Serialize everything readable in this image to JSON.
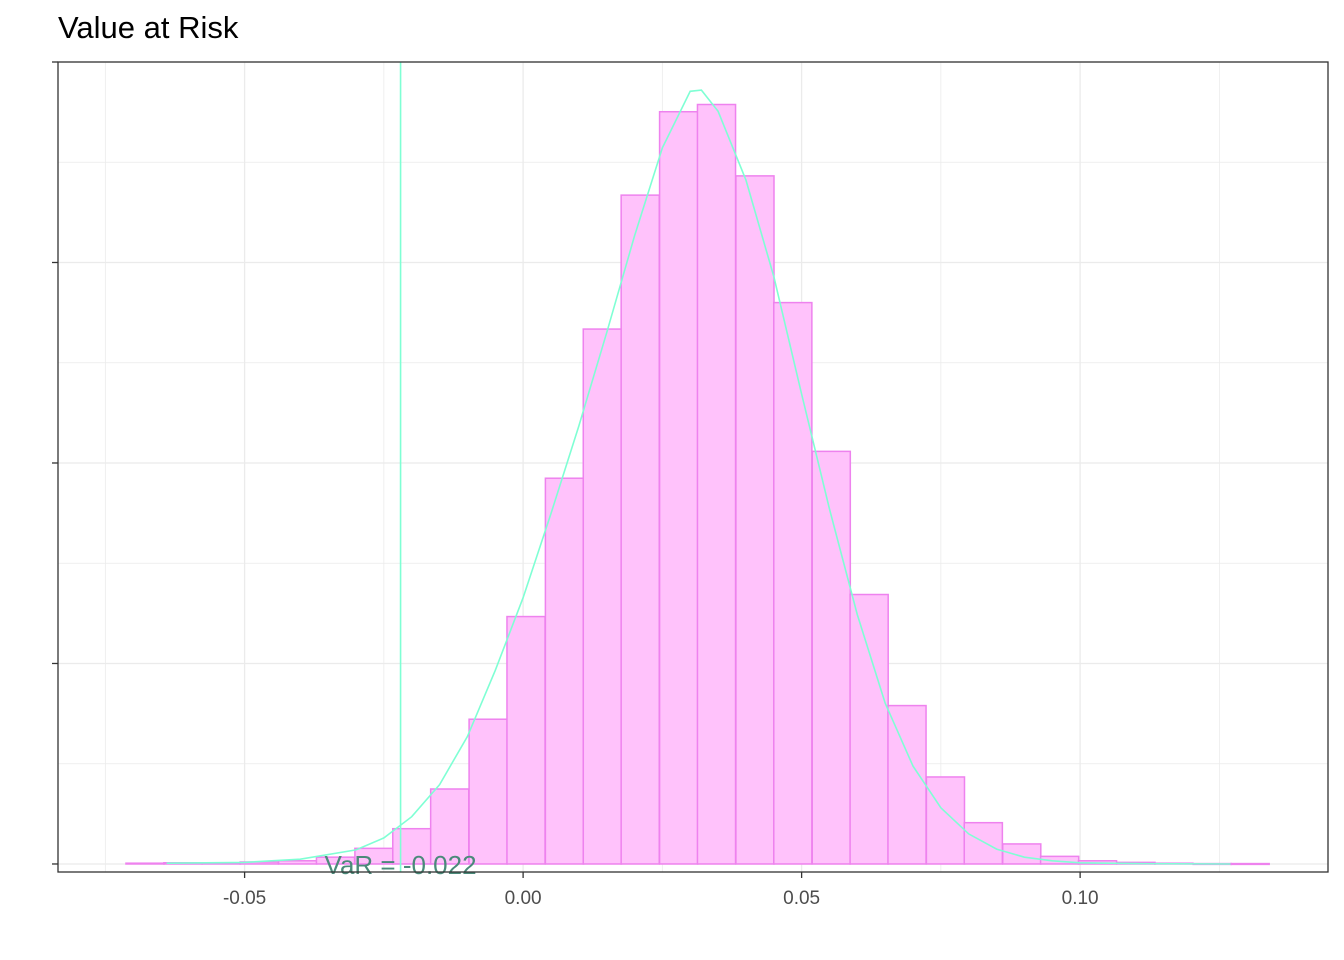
{
  "chart_data": {
    "type": "bar",
    "title": "Value at Risk",
    "xlabel": "",
    "ylabel": "",
    "xlim": [
      -0.0835,
      0.1445
    ],
    "ylim": [
      -0.002,
      0.2
    ],
    "x_ticks": [
      -0.05,
      0.0,
      0.05,
      0.1
    ],
    "x_tick_labels": [
      "-0.05",
      "0.00",
      "0.05",
      "0.10"
    ],
    "y_ticks": [
      0,
      0.05,
      0.1,
      0.15,
      0.2
    ],
    "y_tick_labels": [],
    "grid": true,
    "bin_width": 0.00684,
    "bin_lefts": [
      -0.0713,
      -0.0645,
      -0.0576,
      -0.0508,
      -0.0439,
      -0.0371,
      -0.0302,
      -0.0234,
      -0.0166,
      -0.0097,
      -0.0029,
      0.004,
      0.0108,
      0.0176,
      0.0245,
      0.0313,
      0.0382,
      0.045,
      0.0519,
      0.0587,
      0.0655,
      0.0724,
      0.0792,
      0.0861,
      0.0929,
      0.0997,
      0.1066,
      0.1134,
      0.1203,
      0.1271
    ],
    "values": [
      0.0002,
      0.0003,
      0.0003,
      0.0005,
      0.0008,
      0.0017,
      0.0039,
      0.0088,
      0.0187,
      0.0361,
      0.0617,
      0.0962,
      0.1334,
      0.1668,
      0.1876,
      0.1894,
      0.1716,
      0.14,
      0.1029,
      0.0672,
      0.0395,
      0.0217,
      0.0103,
      0.005,
      0.0019,
      0.0008,
      0.0004,
      0.0002,
      0.0001,
      0.0001
    ],
    "density_curve": {
      "x": [
        -0.064,
        -0.05,
        -0.04,
        -0.03,
        -0.025,
        -0.02,
        -0.015,
        -0.01,
        -0.005,
        0.0,
        0.005,
        0.01,
        0.015,
        0.02,
        0.025,
        0.03,
        0.032,
        0.035,
        0.04,
        0.045,
        0.05,
        0.055,
        0.06,
        0.065,
        0.07,
        0.075,
        0.08,
        0.085,
        0.09,
        0.095,
        0.1,
        0.11,
        0.127
      ],
      "y": [
        0.0002,
        0.0004,
        0.0012,
        0.0035,
        0.0065,
        0.0118,
        0.0198,
        0.0318,
        0.0483,
        0.0664,
        0.0874,
        0.1092,
        0.1325,
        0.1566,
        0.1786,
        0.1927,
        0.193,
        0.1877,
        0.1706,
        0.1465,
        0.1172,
        0.0885,
        0.0622,
        0.0401,
        0.0244,
        0.014,
        0.0075,
        0.0037,
        0.0017,
        0.0008,
        0.0003,
        0.0001,
        0.0
      ]
    },
    "var_value": -0.022,
    "var_label": "VaR =  -0.022",
    "colors": {
      "bar_fill": "#ffc2fb",
      "bar_stroke": "#ee82ee",
      "curve": "#7fffd4",
      "var_line": "#7fffd4",
      "var_text": "#4a8a7a",
      "grid": "#ebebeb",
      "axis": "#333333"
    }
  }
}
